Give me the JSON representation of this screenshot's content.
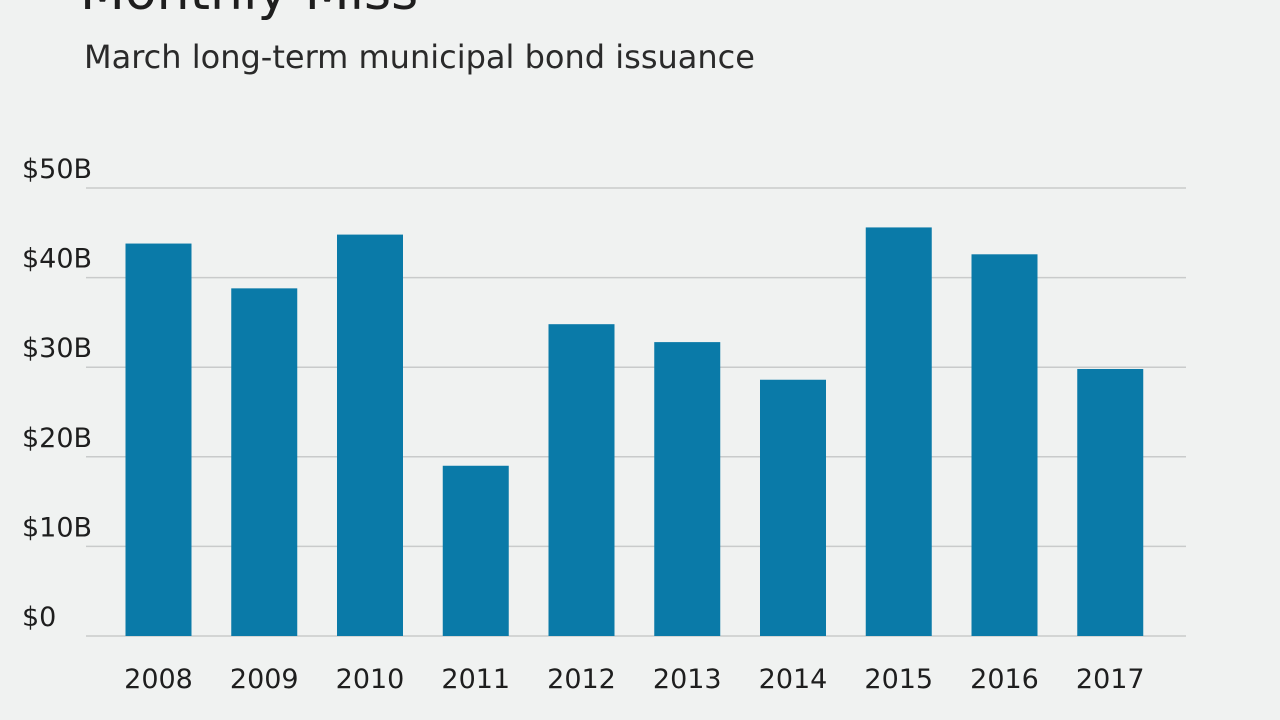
{
  "chart_data": {
    "type": "bar",
    "title": "Monthly Miss",
    "subtitle": "March long-term municipal bond issuance",
    "xlabel": "",
    "ylabel": "",
    "categories": [
      "2008",
      "2009",
      "2010",
      "2011",
      "2012",
      "2013",
      "2014",
      "2015",
      "2016",
      "2017"
    ],
    "values": [
      43.8,
      38.8,
      44.8,
      19.0,
      34.8,
      32.8,
      28.6,
      45.6,
      42.6,
      29.8
    ],
    "ylim": [
      0,
      50
    ],
    "yticks": [
      0,
      10,
      20,
      30,
      40,
      50
    ],
    "ytick_labels": [
      "$0",
      "$10B",
      "$20B",
      "$30B",
      "$40B",
      "$50B"
    ],
    "grid": true,
    "legend": "none",
    "colors": {
      "bar": "#0a7aa8",
      "grid": "#c9cbcb",
      "background": "#f0f2f1",
      "text": "#1e1e1e"
    }
  }
}
